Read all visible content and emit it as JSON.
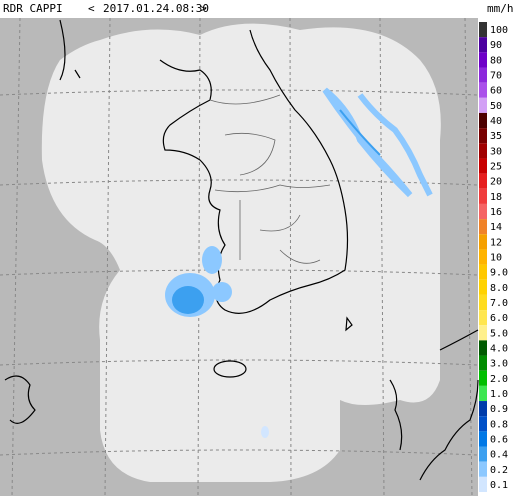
{
  "header": {
    "product": "RDR CAPPI",
    "prev": "<",
    "datetime": "2017.01.24.08:30",
    "next": ">",
    "unit": "mm/h"
  },
  "legend": [
    {
      "label": "100",
      "color": "#333333"
    },
    {
      "label": "90",
      "color": "#4c00a0"
    },
    {
      "label": "80",
      "color": "#6e00c8"
    },
    {
      "label": "70",
      "color": "#8c28dc"
    },
    {
      "label": "60",
      "color": "#aa50ea"
    },
    {
      "label": "50",
      "color": "#d2a0f5"
    },
    {
      "label": "40",
      "color": "#4c0000"
    },
    {
      "label": "35",
      "color": "#780000"
    },
    {
      "label": "30",
      "color": "#a00000"
    },
    {
      "label": "25",
      "color": "#c80000"
    },
    {
      "label": "20",
      "color": "#e61e1e"
    },
    {
      "label": "18",
      "color": "#f03c3c"
    },
    {
      "label": "16",
      "color": "#f56464"
    },
    {
      "label": "14",
      "color": "#f08228"
    },
    {
      "label": "12",
      "color": "#f5a000"
    },
    {
      "label": "10",
      "color": "#ffb400"
    },
    {
      "label": "9.0",
      "color": "#ffc800"
    },
    {
      "label": "8.0",
      "color": "#ffd200"
    },
    {
      "label": "7.0",
      "color": "#ffdc1e"
    },
    {
      "label": "6.0",
      "color": "#ffe650"
    },
    {
      "label": "5.0",
      "color": "#fff08c"
    },
    {
      "label": "4.0",
      "color": "#005a00"
    },
    {
      "label": "3.0",
      "color": "#008c00"
    },
    {
      "label": "2.0",
      "color": "#00be00"
    },
    {
      "label": "1.0",
      "color": "#3ce650"
    },
    {
      "label": "0.9",
      "color": "#003caa"
    },
    {
      "label": "0.8",
      "color": "#0050c8"
    },
    {
      "label": "0.6",
      "color": "#0078e6"
    },
    {
      "label": "0.4",
      "color": "#3ca0f0"
    },
    {
      "label": "0.2",
      "color": "#8cc8ff"
    },
    {
      "label": "0.1",
      "color": "#d2e6ff"
    }
  ]
}
